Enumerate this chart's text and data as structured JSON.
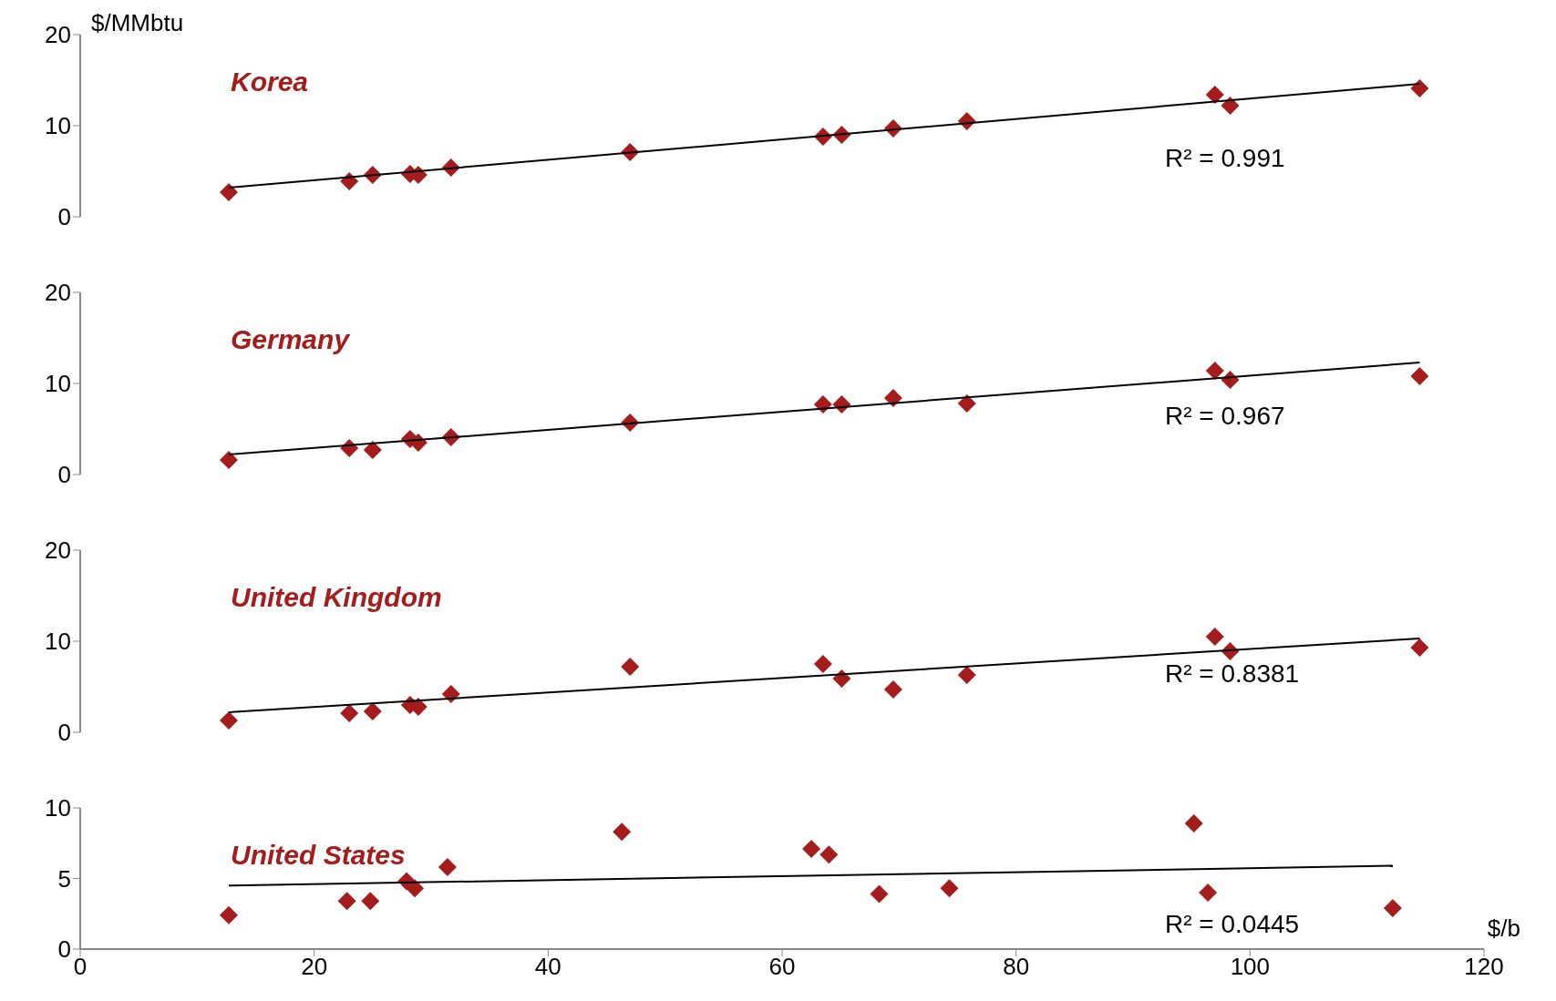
{
  "chart_data": [
    {
      "type": "scatter",
      "title": "Korea",
      "ylabel": "$/MMbtu",
      "marker": "diamond",
      "xlim": [
        0,
        120
      ],
      "ylim": [
        0,
        20
      ],
      "yticks": [
        0,
        10,
        20
      ],
      "tick_labels": "y",
      "annotations": [
        "R² = 0.991"
      ],
      "series": [
        {
          "type": "scatter",
          "color": "#a51c1c",
          "x": [
            12.7,
            23.0,
            25.0,
            28.2,
            28.9,
            31.7,
            47.0,
            63.5,
            65.1,
            69.5,
            75.8,
            97.0,
            98.3,
            114.5
          ],
          "values": [
            2.7,
            3.9,
            4.6,
            4.7,
            4.6,
            5.4,
            7.1,
            8.8,
            9.0,
            9.7,
            10.5,
            13.4,
            12.2,
            14.1
          ]
        },
        {
          "type": "line",
          "color": "#000000",
          "marker": "none",
          "x": [
            12.7,
            114.5
          ],
          "values": [
            3.2,
            14.6
          ]
        }
      ]
    },
    {
      "type": "scatter",
      "title": "Germany",
      "marker": "diamond",
      "xlim": [
        0,
        120
      ],
      "ylim": [
        0,
        20
      ],
      "yticks": [
        0,
        10,
        20
      ],
      "tick_labels": "y",
      "annotations": [
        "R² = 0.967"
      ],
      "series": [
        {
          "type": "scatter",
          "color": "#a51c1c",
          "x": [
            12.7,
            23.0,
            25.0,
            28.2,
            28.9,
            31.7,
            47.0,
            63.5,
            65.1,
            69.5,
            75.8,
            97.0,
            98.3,
            114.5
          ],
          "values": [
            1.6,
            2.9,
            2.7,
            3.9,
            3.5,
            4.1,
            5.7,
            7.7,
            7.7,
            8.4,
            7.8,
            11.4,
            10.4,
            10.8
          ]
        },
        {
          "type": "line",
          "color": "#000000",
          "marker": "none",
          "x": [
            12.7,
            114.5
          ],
          "values": [
            2.2,
            12.3
          ]
        }
      ]
    },
    {
      "type": "scatter",
      "title": "United Kingdom",
      "marker": "diamond",
      "xlim": [
        0,
        120
      ],
      "ylim": [
        0,
        20
      ],
      "yticks": [
        0,
        10,
        20
      ],
      "tick_labels": "y",
      "annotations": [
        "R² = 0.8381"
      ],
      "series": [
        {
          "type": "scatter",
          "color": "#a51c1c",
          "x": [
            12.7,
            23.0,
            25.0,
            28.2,
            28.9,
            31.7,
            47.0,
            63.5,
            65.1,
            69.5,
            75.8,
            97.0,
            98.3,
            114.5
          ],
          "values": [
            1.3,
            2.1,
            2.3,
            3.0,
            2.8,
            4.2,
            7.2,
            7.5,
            5.9,
            4.7,
            6.3,
            10.5,
            8.9,
            9.3
          ]
        },
        {
          "type": "line",
          "color": "#000000",
          "marker": "none",
          "x": [
            12.7,
            114.5
          ],
          "values": [
            2.2,
            10.3
          ]
        }
      ]
    },
    {
      "type": "scatter",
      "title": "United States",
      "xlabel": "$/b",
      "marker": "diamond",
      "xlim": [
        0,
        120
      ],
      "xticks": [
        0,
        20,
        40,
        60,
        80,
        100,
        120
      ],
      "ylim": [
        0,
        10
      ],
      "yticks": [
        0,
        5,
        10
      ],
      "annotations": [
        "R² = 0.0445"
      ],
      "series": [
        {
          "type": "scatter",
          "color": "#a51c1c",
          "x": [
            12.7,
            22.8,
            24.8,
            27.9,
            28.6,
            31.4,
            46.3,
            62.5,
            64.0,
            68.3,
            74.3,
            95.2,
            96.4,
            112.2
          ],
          "values": [
            2.4,
            3.4,
            3.4,
            4.8,
            4.3,
            5.8,
            8.3,
            7.1,
            6.7,
            3.9,
            4.3,
            8.9,
            4.0,
            2.9
          ]
        },
        {
          "type": "line",
          "color": "#000000",
          "marker": "none",
          "x": [
            12.7,
            112.2
          ],
          "values": [
            4.5,
            5.9
          ]
        }
      ]
    }
  ]
}
